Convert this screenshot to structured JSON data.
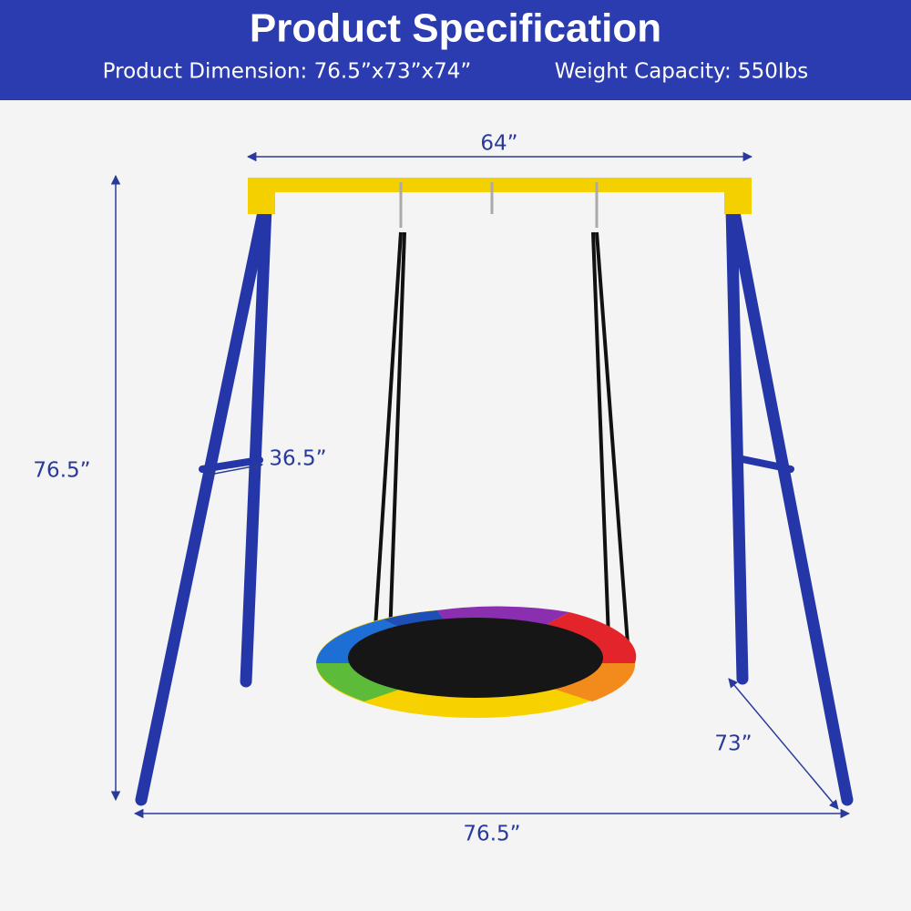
{
  "header": {
    "title": "Product Specification",
    "dimension": "Product Dimension: 76.5”x73”x74”",
    "weight": "Weight Capacity: 550Ibs"
  },
  "dimensions": {
    "top_width": "64”",
    "height": "76.5”",
    "brace": "36.5”",
    "depth": "73”",
    "base_width": "76.5”"
  }
}
